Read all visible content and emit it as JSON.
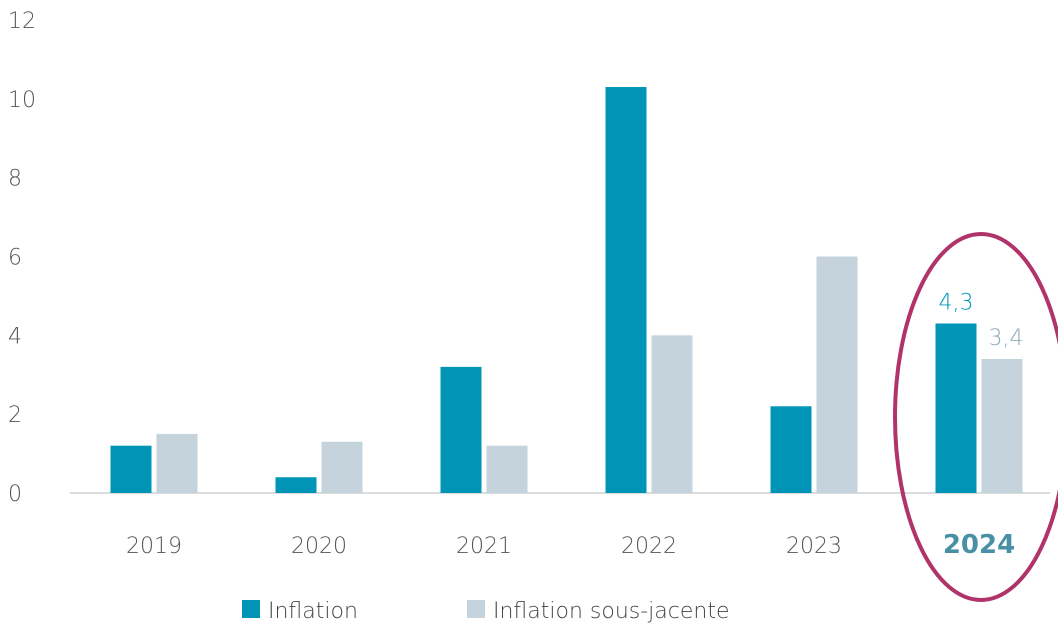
{
  "chart_data": {
    "type": "bar",
    "categories": [
      "2019",
      "2020",
      "2021",
      "2022",
      "2023",
      "2024"
    ],
    "series": [
      {
        "name": "Inflation",
        "values": [
          1.2,
          0.4,
          3.2,
          10.3,
          2.2,
          4.3
        ]
      },
      {
        "name": "Inflation sous-jacente",
        "values": [
          1.5,
          1.3,
          1.2,
          4.0,
          6.0,
          3.4
        ]
      }
    ],
    "highlight_category": "2024",
    "data_labels": [
      {
        "category": "2024",
        "series": "Inflation",
        "text": "4,3"
      },
      {
        "category": "2024",
        "series": "Inflation sous-jacente",
        "text": "3,4"
      }
    ],
    "ylim": [
      0,
      12
    ],
    "yticks": [
      0,
      2,
      4,
      6,
      8,
      10,
      12
    ],
    "grid": false,
    "legend_position": "bottom",
    "colors": {
      "Inflation": "#0095b7",
      "Inflation sous-jacente": "#c5d3dc",
      "highlight_ellipse": "#b0336a",
      "highlight_label": "#4a90a4",
      "axis": "#d0d0d0"
    }
  }
}
